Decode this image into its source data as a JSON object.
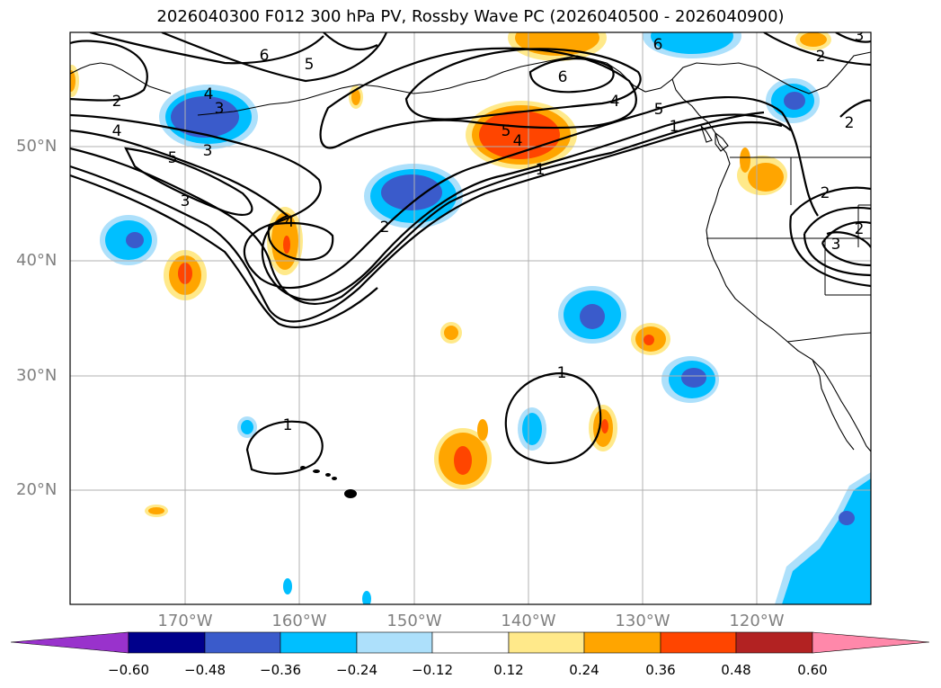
{
  "title": "2026040300 F012 300 hPa PV, Rossby Wave PC (2026040500 - 2026040900)",
  "lat_ticks": [
    "50°N",
    "40°N",
    "30°N",
    "20°N"
  ],
  "lon_ticks": [
    "170°W",
    "160°W",
    "150°W",
    "140°W",
    "130°W",
    "120°W"
  ],
  "colorbar": {
    "colors": [
      "#9932CC",
      "#00008B",
      "#3A5BCB",
      "#00BFFF",
      "#ADE0FB",
      "#FFFFFF",
      "#FFE98A",
      "#FFA500",
      "#FF4500",
      "#B22222",
      "#FF88AA"
    ],
    "ticks": [
      "−0.60",
      "−0.48",
      "−0.36",
      "−0.24",
      "−0.12",
      "0.12",
      "0.24",
      "0.36",
      "0.48",
      "0.60"
    ]
  },
  "contour_labels": [
    "6",
    "6",
    "5",
    "4",
    "4",
    "3",
    "2",
    "4",
    "3",
    "5",
    "3",
    "4",
    "2",
    "1",
    "1",
    "1",
    "5",
    "4",
    "1",
    "6",
    "5",
    "2",
    "3",
    "2",
    "2",
    "3",
    "2"
  ],
  "colors": {
    "land_line": "#000000",
    "grid": "#b0b0b0",
    "contour": "#000000"
  }
}
